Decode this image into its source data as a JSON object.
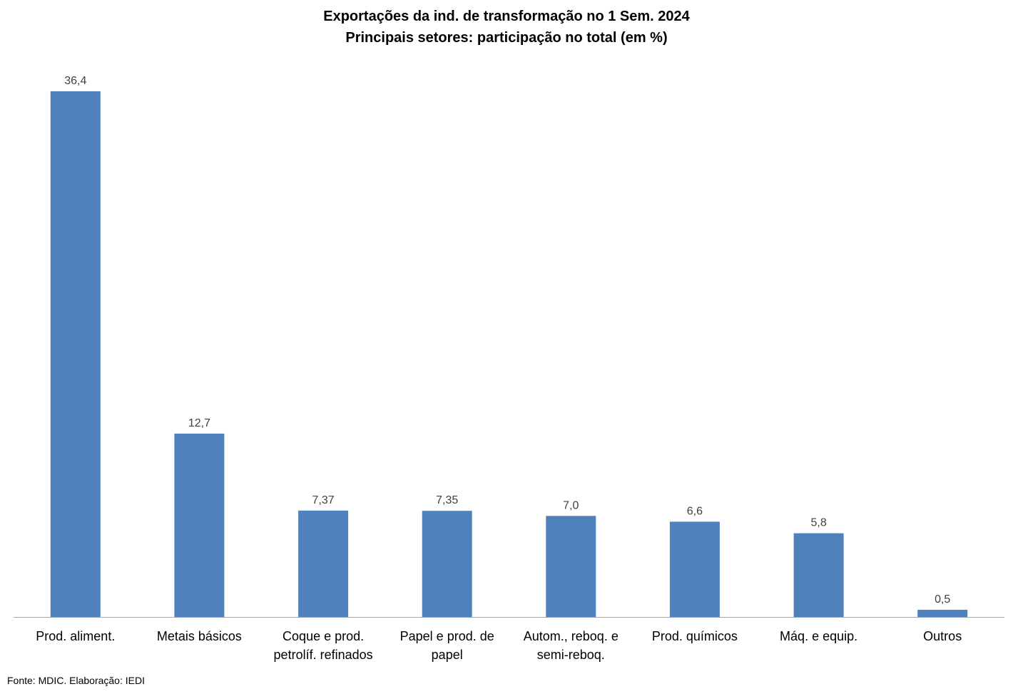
{
  "chart_data": {
    "type": "bar",
    "title": "Exportações da ind. de transformação no 1 Sem. 2024",
    "subtitle": "Principais setores: participação no total (em %)",
    "categories": [
      [
        "Prod. aliment."
      ],
      [
        "Metais básicos"
      ],
      [
        "Coque e prod.",
        "petrolíf. refinados"
      ],
      [
        "Papel e prod. de",
        "papel"
      ],
      [
        "Autom., reboq. e",
        "semi-reboq."
      ],
      [
        "Prod. químicos"
      ],
      [
        "Máq. e equip."
      ],
      [
        "Outros"
      ]
    ],
    "values": [
      36.4,
      12.7,
      7.37,
      7.35,
      7.0,
      6.6,
      5.8,
      0.5
    ],
    "value_labels": [
      "36,4",
      "12,7",
      "7,37",
      "7,35",
      "7,0",
      "6,6",
      "5,8",
      "0,5"
    ],
    "ylim": [
      0,
      36.4
    ],
    "bar_color": "#4f81bd",
    "axis_color": "#a6a6a6",
    "grid": false,
    "legend": "none"
  },
  "source_note": "Fonte: MDIC. Elaboração: IEDI"
}
